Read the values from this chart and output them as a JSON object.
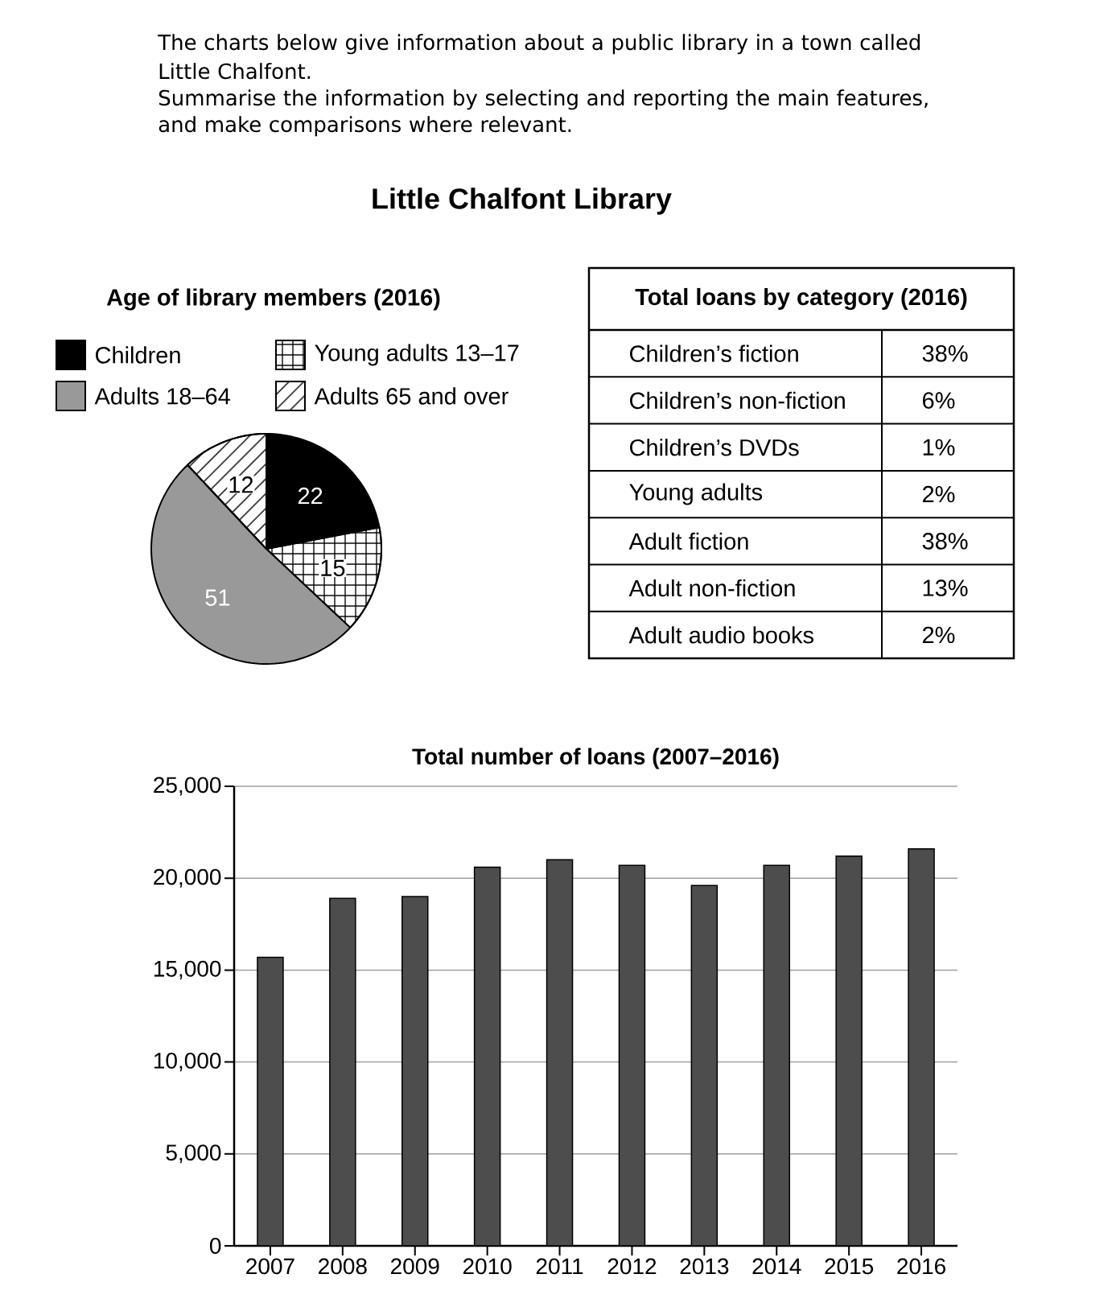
{
  "chart_data": [
    {
      "type": "other",
      "title": "Little Chalfont Library",
      "annotations": [
        "The charts below give information about a public library in a town called Little Chalfont.",
        "Summarise the information by selecting and reporting the main features, and make comparisons where relevant."
      ]
    },
    {
      "type": "pie",
      "title": "Age of library members (2016)",
      "categories": [
        "Children",
        "Young adults 13–17",
        "Adults 18–64",
        "Adults 65 and over"
      ],
      "values": [
        22,
        15,
        51,
        12
      ],
      "colors": [
        "#000000",
        "#ffffff",
        "#999999",
        "#ffffff"
      ],
      "data_labels": true,
      "legend": "top"
    },
    {
      "type": "other",
      "title": "Total loans by category (2016)",
      "categories": [
        "Children’s fiction",
        "Children’s non-fiction",
        "Children’s DVDs",
        "Young adults",
        "Adult fiction",
        "Adult non-fiction",
        "Adult audio books"
      ],
      "value_labels": [
        "38%",
        "6%",
        "1%",
        "2%",
        "38%",
        "13%",
        "2%"
      ]
    },
    {
      "type": "bar",
      "title": "Total number of loans (2007–2016)",
      "categories": [
        "2007",
        "2008",
        "2009",
        "2010",
        "2011",
        "2012",
        "2013",
        "2014",
        "2015",
        "2016"
      ],
      "values": [
        15700,
        18900,
        19000,
        20600,
        21000,
        20700,
        19600,
        20700,
        21200,
        21600
      ],
      "color": "#4d4d4d",
      "ylim": [
        0,
        25000
      ],
      "yticks": [
        0,
        {
          "value": 5000,
          "label": "5,000"
        },
        {
          "value": 10000,
          "label": "10,000"
        },
        {
          "value": 15000,
          "label": "15,000"
        },
        {
          "value": 20000,
          "label": "20,000"
        },
        {
          "value": 25000,
          "label": "25,000"
        }
      ],
      "grid": "y"
    }
  ]
}
